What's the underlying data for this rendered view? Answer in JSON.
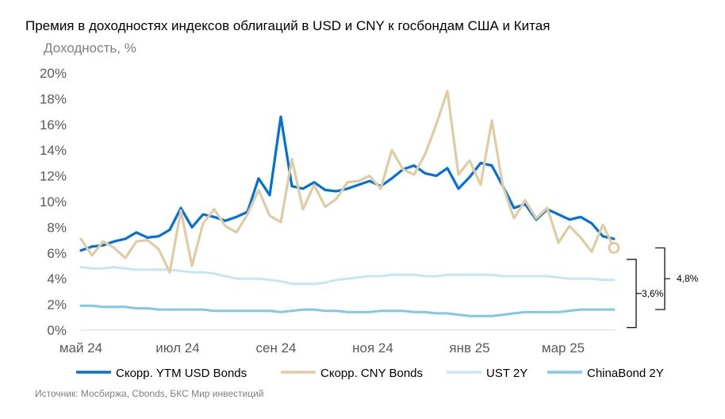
{
  "chart_data": {
    "type": "line",
    "title": "Премия в доходностях индексов облигаций в USD и CNY к госбондам США и Китая",
    "ylabel": "Доходность, %",
    "xlabel": "",
    "ylim": [
      0,
      20
    ],
    "y_ticks": [
      "0%",
      "2%",
      "4%",
      "6%",
      "8%",
      "10%",
      "12%",
      "14%",
      "16%",
      "18%",
      "20%"
    ],
    "x_ticks": [
      "май 24",
      "июл 24",
      "сен 24",
      "ноя 24",
      "янв 25",
      "мар 25"
    ],
    "grid": false,
    "legend_position": "bottom",
    "x": [
      "2024-05-01",
      "2024-05-08",
      "2024-05-15",
      "2024-05-22",
      "2024-05-29",
      "2024-06-05",
      "2024-06-12",
      "2024-06-19",
      "2024-06-26",
      "2024-07-03",
      "2024-07-10",
      "2024-07-17",
      "2024-07-24",
      "2024-07-31",
      "2024-08-07",
      "2024-08-14",
      "2024-08-21",
      "2024-08-28",
      "2024-09-04",
      "2024-09-11",
      "2024-09-18",
      "2024-09-25",
      "2024-10-02",
      "2024-10-09",
      "2024-10-16",
      "2024-10-23",
      "2024-10-30",
      "2024-11-06",
      "2024-11-13",
      "2024-11-20",
      "2024-11-27",
      "2024-12-04",
      "2024-12-11",
      "2024-12-18",
      "2024-12-25",
      "2025-01-01",
      "2025-01-08",
      "2025-01-15",
      "2025-01-22",
      "2025-01-29",
      "2025-02-05",
      "2025-02-12",
      "2025-02-19",
      "2025-02-26",
      "2025-03-05",
      "2025-03-12",
      "2025-03-19",
      "2025-03-26",
      "2025-04-02"
    ],
    "series": [
      {
        "name": "Скорр. YTM USD Bonds",
        "color": "#0070dd",
        "values": [
          6.2,
          6.5,
          6.6,
          6.9,
          7.1,
          7.6,
          7.2,
          7.3,
          7.8,
          9.5,
          8.0,
          9.0,
          8.8,
          8.5,
          8.8,
          9.2,
          11.8,
          10.5,
          16.6,
          11.2,
          11.0,
          11.5,
          10.9,
          10.8,
          11.0,
          11.3,
          11.6,
          11.2,
          11.8,
          12.5,
          12.8,
          12.2,
          12.0,
          12.6,
          11.0,
          11.9,
          13.0,
          12.8,
          11.2,
          9.5,
          9.8,
          8.6,
          9.4,
          9.0,
          8.6,
          8.8,
          8.3,
          7.3,
          7.1
        ]
      },
      {
        "name": "Скорр. CNY Bonds",
        "color": "#e0cca4",
        "values": [
          7.1,
          5.8,
          6.9,
          6.4,
          5.6,
          6.9,
          7.0,
          6.3,
          4.5,
          9.3,
          5.0,
          8.3,
          9.4,
          8.1,
          7.6,
          9.0,
          10.9,
          8.9,
          8.4,
          13.3,
          9.4,
          11.3,
          9.6,
          10.2,
          11.5,
          11.6,
          12.0,
          11.0,
          14.0,
          12.5,
          12.1,
          13.7,
          16.0,
          18.6,
          12.1,
          13.2,
          11.3,
          16.3,
          11.2,
          8.7,
          10.1,
          8.7,
          9.5,
          6.8,
          8.1,
          7.2,
          6.1,
          8.2,
          6.4
        ]
      },
      {
        "name": "UST 2Y",
        "color": "#c5e6f2",
        "values": [
          4.9,
          4.8,
          4.8,
          4.9,
          4.8,
          4.7,
          4.7,
          4.7,
          4.7,
          4.6,
          4.5,
          4.5,
          4.4,
          4.2,
          4.0,
          4.0,
          4.0,
          3.9,
          3.8,
          3.6,
          3.6,
          3.6,
          3.7,
          3.9,
          4.0,
          4.1,
          4.2,
          4.2,
          4.3,
          4.3,
          4.3,
          4.2,
          4.2,
          4.3,
          4.3,
          4.3,
          4.3,
          4.3,
          4.2,
          4.2,
          4.2,
          4.2,
          4.2,
          4.1,
          4.0,
          4.0,
          4.0,
          3.9,
          3.9
        ]
      },
      {
        "name": "ChinaBond 2Y",
        "color": "#80c8e6",
        "values": [
          1.9,
          1.9,
          1.8,
          1.8,
          1.8,
          1.7,
          1.7,
          1.6,
          1.6,
          1.6,
          1.6,
          1.6,
          1.5,
          1.5,
          1.5,
          1.5,
          1.5,
          1.5,
          1.4,
          1.5,
          1.6,
          1.6,
          1.5,
          1.5,
          1.4,
          1.4,
          1.4,
          1.5,
          1.5,
          1.5,
          1.4,
          1.4,
          1.3,
          1.3,
          1.2,
          1.1,
          1.1,
          1.1,
          1.2,
          1.3,
          1.4,
          1.4,
          1.4,
          1.4,
          1.5,
          1.6,
          1.6,
          1.6,
          1.6
        ]
      }
    ],
    "annotations": [
      {
        "label": "3,6%",
        "range": [
          0.2,
          5.5
        ]
      },
      {
        "label": "4,8%",
        "range": [
          1.6,
          6.4
        ]
      }
    ],
    "source": "Источник: Мосбиржа, Cbonds, БКС Мир инвестиций"
  }
}
